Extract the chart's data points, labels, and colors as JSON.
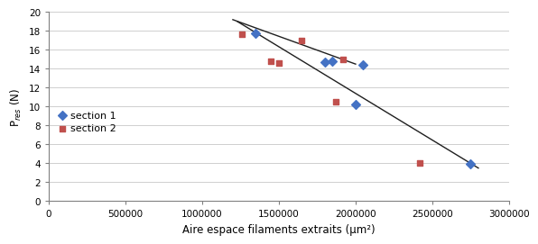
{
  "section1_x": [
    1350000,
    1800000,
    1850000,
    2000000,
    2050000,
    2750000
  ],
  "section1_y": [
    17.8,
    14.7,
    14.8,
    10.2,
    14.4,
    3.9
  ],
  "section2_x": [
    1260000,
    1450000,
    1500000,
    1650000,
    1870000,
    1920000,
    2420000
  ],
  "section2_y": [
    17.7,
    14.8,
    14.6,
    17.0,
    10.5,
    15.0,
    4.0
  ],
  "trendline1_x": [
    1230000,
    2800000
  ],
  "trendline1_y": [
    19.0,
    3.5
  ],
  "trendline2_x": [
    1200000,
    2000000
  ],
  "trendline2_y": [
    19.2,
    14.5
  ],
  "xlabel": "Aire espace filaments extraits (μm²)",
  "ylabel": "P$_{res}$ (N)",
  "xlim": [
    0,
    3000000
  ],
  "ylim": [
    0,
    20
  ],
  "yticks": [
    0,
    2,
    4,
    6,
    8,
    10,
    12,
    14,
    16,
    18,
    20
  ],
  "xticks": [
    0,
    500000,
    1000000,
    1500000,
    2000000,
    2500000,
    3000000
  ],
  "legend_section1": "section 1",
  "legend_section2": "section 2",
  "marker_color1": "#4472C4",
  "marker_color2": "#C0504D",
  "trendline_color": "#1F1F1F",
  "bg_color": "#FFFFFF",
  "grid_color": "#C8C8C8"
}
